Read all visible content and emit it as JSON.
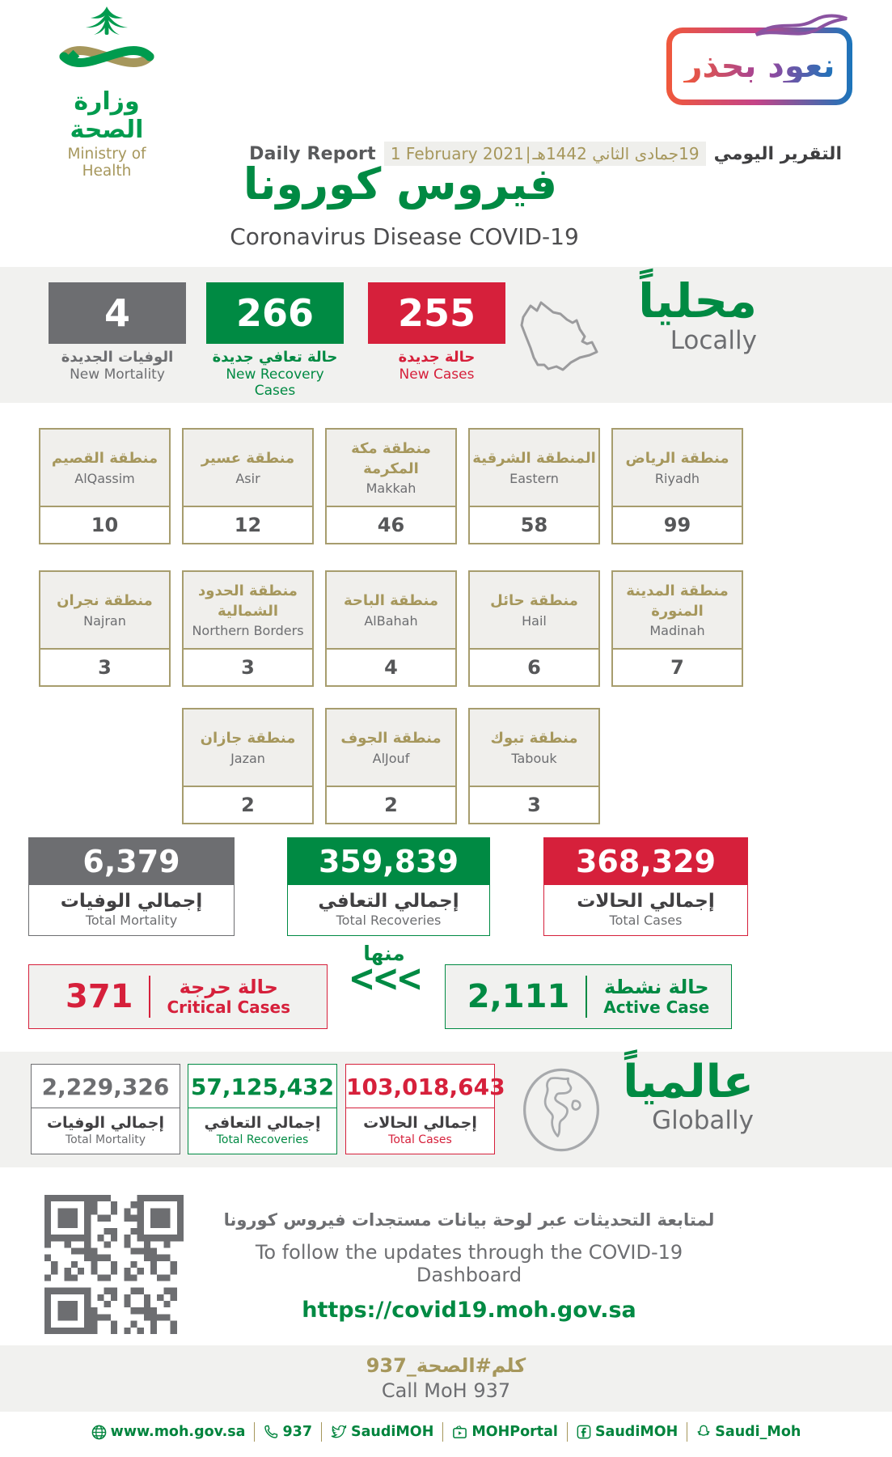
{
  "header": {
    "logo": {
      "title_ar": "وزارة الصحة",
      "title_en": "Ministry of Health"
    },
    "badge_label": "نعود بحذر"
  },
  "report": {
    "daily_report_en": "Daily Report",
    "date_en": "1 February 2021",
    "date_separator": "|",
    "date_ar": "19جمادى الثاني 1442هـ",
    "daily_report_ar": "التقرير اليومي",
    "title_ar": "فيروس كورونا",
    "title_en": "Coronavirus Disease COVID-19"
  },
  "locally": {
    "heading_ar": "محلياً",
    "heading_en": "Locally",
    "new_mortality": {
      "value": "4",
      "label_ar": "الوفيات الجديدة",
      "label_en": "New Mortality"
    },
    "new_recoveries": {
      "value": "266",
      "label_ar": "حالة تعافي جديدة",
      "label_en": "New Recovery Cases"
    },
    "new_cases": {
      "value": "255",
      "label_ar": "حالة جديدة",
      "label_en": "New Cases"
    }
  },
  "regions": {
    "row1": [
      {
        "ar": "منطقة القصيم",
        "en": "AlQassim",
        "value": "10"
      },
      {
        "ar": "منطقة عسير",
        "en": "Asir",
        "value": "12"
      },
      {
        "ar": "منطقة مكة المكرمة",
        "en": "Makkah",
        "value": "46"
      },
      {
        "ar": "المنطقة الشرقية",
        "en": "Eastern",
        "value": "58"
      },
      {
        "ar": "منطقة الرياض",
        "en": "Riyadh",
        "value": "99"
      }
    ],
    "row2": [
      {
        "ar": "منطقة نجران",
        "en": "Najran",
        "value": "3"
      },
      {
        "ar": "منطقة الحدود الشمالية",
        "en": "Northern Borders",
        "value": "3"
      },
      {
        "ar": "منطقة الباحة",
        "en": "AlBahah",
        "value": "4"
      },
      {
        "ar": "منطقة حائل",
        "en": "Hail",
        "value": "6"
      },
      {
        "ar": "منطقة المدينة المنورة",
        "en": "Madinah",
        "value": "7"
      }
    ],
    "row3": [
      {
        "ar": "منطقة جازان",
        "en": "Jazan",
        "value": "2"
      },
      {
        "ar": "منطقة الجوف",
        "en": "AlJouf",
        "value": "2"
      },
      {
        "ar": "منطقة تبوك",
        "en": "Tabouk",
        "value": "3"
      }
    ]
  },
  "totals": {
    "mortality": {
      "value": "6,379",
      "label_ar": "إجمالي الوفيات",
      "label_en": "Total Mortality"
    },
    "recoveries": {
      "value": "359,839",
      "label_ar": "إجمالي التعافي",
      "label_en": "Total Recoveries"
    },
    "cases": {
      "value": "368,329",
      "label_ar": "إجمالي الحالات",
      "label_en": "Total Cases"
    }
  },
  "active_row": {
    "critical": {
      "value": "371",
      "label_ar": "حالة حرجة",
      "label_en": "Critical Cases"
    },
    "of_which_ar": "منها",
    "chevrons": "<<<",
    "active": {
      "value": "2,111",
      "label_ar": "حالة نشطة",
      "label_en": "Active Case"
    }
  },
  "globally": {
    "heading_ar": "عالمياً",
    "heading_en": "Globally",
    "mortality": {
      "value": "2,229,326",
      "label_ar": "إجمالي الوفيات",
      "label_en": "Total Mortality"
    },
    "recoveries": {
      "value": "57,125,432",
      "label_ar": "إجمالي التعافي",
      "label_en": "Total Recoveries"
    },
    "cases": {
      "value": "103,018,643",
      "label_ar": "إجمالي الحالات",
      "label_en": "Total Cases"
    }
  },
  "dashboard": {
    "line_ar": "لمتابعة التحديثات عبر لوحة بيانات مستجدات فيروس كورونا",
    "line_en": "To follow the updates through the COVID-19 Dashboard",
    "url": "https://covid19.moh.gov.sa"
  },
  "call": {
    "line_ar": "كلم#الصحة_937",
    "line_en": "Call MoH 937"
  },
  "footer": {
    "links": [
      {
        "icon": "globe-icon",
        "label": "www.moh.gov.sa"
      },
      {
        "icon": "phone-icon",
        "label": "937"
      },
      {
        "icon": "twitter-icon",
        "label": "SaudiMOH"
      },
      {
        "icon": "youtube-icon",
        "label": "MOHPortal"
      },
      {
        "icon": "facebook-icon",
        "label": "SaudiMOH"
      },
      {
        "icon": "snapchat-icon",
        "label": "Saudi_Moh"
      }
    ]
  },
  "colors": {
    "green": "#008A43",
    "red": "#D6203B",
    "gray": "#6D6E71",
    "gold": "#A6975C"
  }
}
